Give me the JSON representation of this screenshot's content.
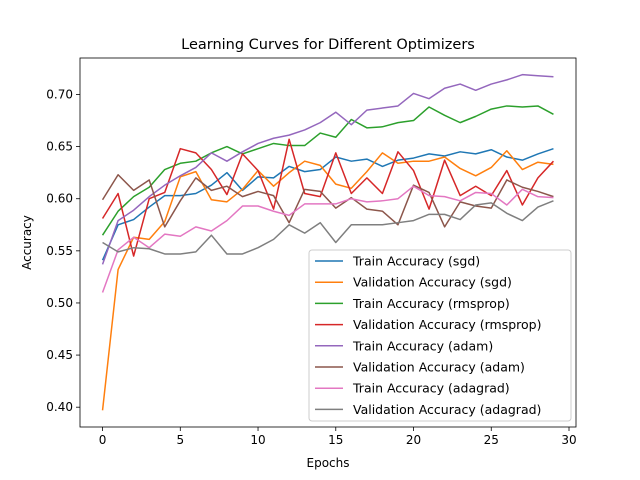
{
  "chart_data": {
    "type": "line",
    "title": "Learning Curves for Different Optimizers",
    "xlabel": "Epochs",
    "ylabel": "Accuracy",
    "xlim": [
      -1.45,
      30.45
    ],
    "ylim": [
      0.381,
      0.735
    ],
    "xticks": [
      0,
      5,
      10,
      15,
      20,
      25,
      30
    ],
    "yticks": [
      0.4,
      0.45,
      0.5,
      0.55,
      0.6,
      0.65,
      0.7
    ],
    "grid": false,
    "legend_position": "lower-right",
    "x": [
      0,
      1,
      2,
      3,
      4,
      5,
      6,
      7,
      8,
      9,
      10,
      11,
      12,
      13,
      14,
      15,
      16,
      17,
      18,
      19,
      20,
      21,
      22,
      23,
      24,
      25,
      26,
      27,
      28,
      29
    ],
    "series": [
      {
        "name": "Train Accuracy (sgd)",
        "color": "#1f77b4",
        "values": [
          0.541,
          0.575,
          0.58,
          0.592,
          0.603,
          0.603,
          0.605,
          0.613,
          0.625,
          0.608,
          0.621,
          0.62,
          0.631,
          0.626,
          0.628,
          0.64,
          0.636,
          0.638,
          0.631,
          0.637,
          0.639,
          0.643,
          0.641,
          0.645,
          0.643,
          0.647,
          0.64,
          0.637,
          0.643,
          0.648
        ]
      },
      {
        "name": "Validation Accuracy (sgd)",
        "color": "#ff7f0e",
        "values": [
          0.397,
          0.532,
          0.563,
          0.561,
          0.578,
          0.621,
          0.626,
          0.599,
          0.597,
          0.609,
          0.627,
          0.612,
          0.625,
          0.636,
          0.632,
          0.614,
          0.61,
          0.626,
          0.644,
          0.634,
          0.636,
          0.636,
          0.64,
          0.629,
          0.622,
          0.63,
          0.646,
          0.628,
          0.635,
          0.633
        ]
      },
      {
        "name": "Train Accuracy (rmsprop)",
        "color": "#2ca02c",
        "values": [
          0.565,
          0.588,
          0.602,
          0.611,
          0.628,
          0.634,
          0.636,
          0.644,
          0.65,
          0.643,
          0.648,
          0.653,
          0.651,
          0.651,
          0.663,
          0.659,
          0.676,
          0.668,
          0.669,
          0.673,
          0.675,
          0.688,
          0.68,
          0.673,
          0.679,
          0.686,
          0.689,
          0.688,
          0.689,
          0.681
        ]
      },
      {
        "name": "Validation Accuracy (rmsprop)",
        "color": "#d62728",
        "values": [
          0.581,
          0.605,
          0.545,
          0.6,
          0.606,
          0.648,
          0.644,
          0.628,
          0.604,
          0.643,
          0.627,
          0.59,
          0.657,
          0.605,
          0.602,
          0.644,
          0.605,
          0.62,
          0.605,
          0.645,
          0.627,
          0.59,
          0.637,
          0.603,
          0.612,
          0.603,
          0.627,
          0.594,
          0.62,
          0.636
        ]
      },
      {
        "name": "Train Accuracy (adam)",
        "color": "#9467bd",
        "values": [
          0.537,
          0.579,
          0.589,
          0.602,
          0.613,
          0.622,
          0.63,
          0.644,
          0.636,
          0.645,
          0.653,
          0.658,
          0.661,
          0.666,
          0.673,
          0.683,
          0.671,
          0.685,
          0.687,
          0.689,
          0.701,
          0.696,
          0.706,
          0.71,
          0.704,
          0.71,
          0.714,
          0.719,
          0.718,
          0.717
        ]
      },
      {
        "name": "Validation Accuracy (adam)",
        "color": "#8c564b",
        "values": [
          0.599,
          0.623,
          0.608,
          0.618,
          0.573,
          0.598,
          0.62,
          0.608,
          0.612,
          0.602,
          0.607,
          0.603,
          0.577,
          0.609,
          0.607,
          0.591,
          0.601,
          0.59,
          0.588,
          0.575,
          0.613,
          0.606,
          0.573,
          0.597,
          0.593,
          0.591,
          0.618,
          0.611,
          0.607,
          0.602
        ]
      },
      {
        "name": "Train Accuracy (adagrad)",
        "color": "#e377c2",
        "values": [
          0.51,
          0.551,
          0.563,
          0.553,
          0.566,
          0.564,
          0.573,
          0.569,
          0.579,
          0.593,
          0.593,
          0.588,
          0.584,
          0.595,
          0.595,
          0.595,
          0.6,
          0.597,
          0.598,
          0.6,
          0.612,
          0.603,
          0.602,
          0.598,
          0.606,
          0.605,
          0.594,
          0.609,
          0.602,
          0.601
        ]
      },
      {
        "name": "Validation Accuracy (adagrad)",
        "color": "#7f7f7f",
        "values": [
          0.558,
          0.549,
          0.553,
          0.552,
          0.547,
          0.547,
          0.549,
          0.565,
          0.547,
          0.547,
          0.553,
          0.561,
          0.575,
          0.567,
          0.577,
          0.558,
          0.575,
          0.575,
          0.575,
          0.577,
          0.579,
          0.585,
          0.585,
          0.58,
          0.594,
          0.596,
          0.586,
          0.579,
          0.592,
          0.598
        ]
      }
    ]
  }
}
